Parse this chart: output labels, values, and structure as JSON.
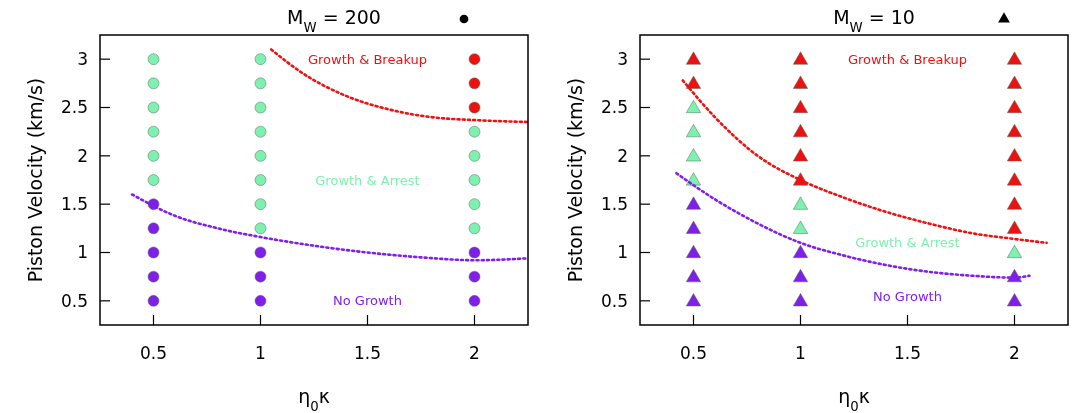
{
  "chart_data": [
    {
      "type": "scatter",
      "title": "M$_{W}$ = 200",
      "xlabel": "η$_{0}$κ",
      "ylabel": "Piston Velocity (km/s)",
      "marker": "circle",
      "grid": false,
      "xlim": [
        0.25,
        2.25
      ],
      "xticks": [
        0.5,
        1,
        1.5,
        2
      ],
      "ylim": [
        0.25,
        3.25
      ],
      "yticks": [
        0.5,
        1,
        1.5,
        2,
        2.5,
        3
      ],
      "series": [
        {
          "color": "#7f1fe8",
          "x": [
            0.5,
            0.5,
            0.5,
            0.5,
            0.5,
            1,
            1,
            1,
            2,
            2,
            2
          ],
          "values": [
            0.5,
            0.75,
            1,
            1.25,
            1.5,
            0.5,
            0.75,
            1,
            0.5,
            0.75,
            1
          ]
        },
        {
          "color": "#80f0b0",
          "x": [
            0.5,
            0.5,
            0.5,
            0.5,
            0.5,
            0.5,
            1,
            1,
            1,
            1,
            1,
            1,
            1,
            1,
            2,
            2,
            2,
            2,
            2
          ],
          "values": [
            1.75,
            2,
            2.25,
            2.5,
            2.75,
            3,
            1.25,
            1.5,
            1.75,
            2,
            2.25,
            2.5,
            2.75,
            3,
            1.25,
            1.5,
            1.75,
            2,
            2.25
          ]
        },
        {
          "color": "#ee1111",
          "x": [
            2,
            2,
            2
          ],
          "values": [
            2.5,
            2.75,
            3
          ]
        },
        {
          "type": "line",
          "line_style": "dotted",
          "marker": "none",
          "color": "#ee1111",
          "x": [
            1.05,
            1.2,
            1.4,
            1.6,
            1.8,
            2.0,
            2.25
          ],
          "values": [
            3.1,
            2.85,
            2.62,
            2.48,
            2.4,
            2.37,
            2.35
          ]
        },
        {
          "type": "line",
          "line_style": "dotted",
          "marker": "none",
          "color": "#7f1fe8",
          "x": [
            0.4,
            0.6,
            0.8,
            1.0,
            1.25,
            1.5,
            1.75,
            2.0,
            2.25
          ],
          "values": [
            1.6,
            1.38,
            1.25,
            1.16,
            1.07,
            1.0,
            0.95,
            0.92,
            0.94
          ]
        }
      ],
      "annotations": [
        "No Growth",
        "Growth & Arrest",
        "Growth & Breakup"
      ]
    },
    {
      "type": "scatter",
      "title": "M$_{W}$ = 10",
      "xlabel": "η$_{0}$κ",
      "ylabel": "Piston Velocity (km/s)",
      "marker": "triangle",
      "grid": false,
      "xlim": [
        0.25,
        2.25
      ],
      "xticks": [
        0.5,
        1,
        1.5,
        2
      ],
      "ylim": [
        0.25,
        3.25
      ],
      "yticks": [
        0.5,
        1,
        1.5,
        2,
        2.5,
        3
      ],
      "series": [
        {
          "color": "#7f1fe8",
          "x": [
            0.5,
            0.5,
            0.5,
            0.5,
            0.5,
            1,
            1,
            1,
            2,
            2
          ],
          "values": [
            0.5,
            0.75,
            1,
            1.25,
            1.5,
            0.5,
            0.75,
            1,
            0.5,
            0.75
          ]
        },
        {
          "color": "#80f0b0",
          "x": [
            0.5,
            0.5,
            0.5,
            0.5,
            1,
            1,
            2
          ],
          "values": [
            1.75,
            2,
            2.25,
            2.5,
            1.25,
            1.5,
            1
          ]
        },
        {
          "color": "#ee1111",
          "x": [
            0.5,
            0.5,
            1,
            1,
            1,
            1,
            1,
            1,
            2,
            2,
            2,
            2,
            2,
            2,
            2,
            2
          ],
          "values": [
            2.75,
            3,
            1.75,
            2,
            2.25,
            2.5,
            2.75,
            3,
            1.25,
            1.5,
            1.75,
            2,
            2.25,
            2.5,
            2.75,
            3
          ]
        },
        {
          "type": "line",
          "line_style": "dotted",
          "marker": "none",
          "color": "#ee1111",
          "x": [
            0.45,
            0.6,
            0.8,
            1.0,
            1.2,
            1.4,
            1.6,
            1.8,
            2.0,
            2.15
          ],
          "values": [
            2.78,
            2.4,
            2.0,
            1.75,
            1.57,
            1.42,
            1.3,
            1.2,
            1.14,
            1.1
          ]
        },
        {
          "type": "line",
          "line_style": "dotted",
          "marker": "none",
          "color": "#7f1fe8",
          "x": [
            0.42,
            0.6,
            0.8,
            1.0,
            1.2,
            1.4,
            1.6,
            1.8,
            2.0,
            2.07
          ],
          "values": [
            1.82,
            1.55,
            1.3,
            1.1,
            0.97,
            0.87,
            0.8,
            0.76,
            0.74,
            0.76
          ]
        }
      ],
      "annotations": [
        "No Growth",
        "Growth & Arrest",
        "Growth & Breakup"
      ]
    }
  ]
}
